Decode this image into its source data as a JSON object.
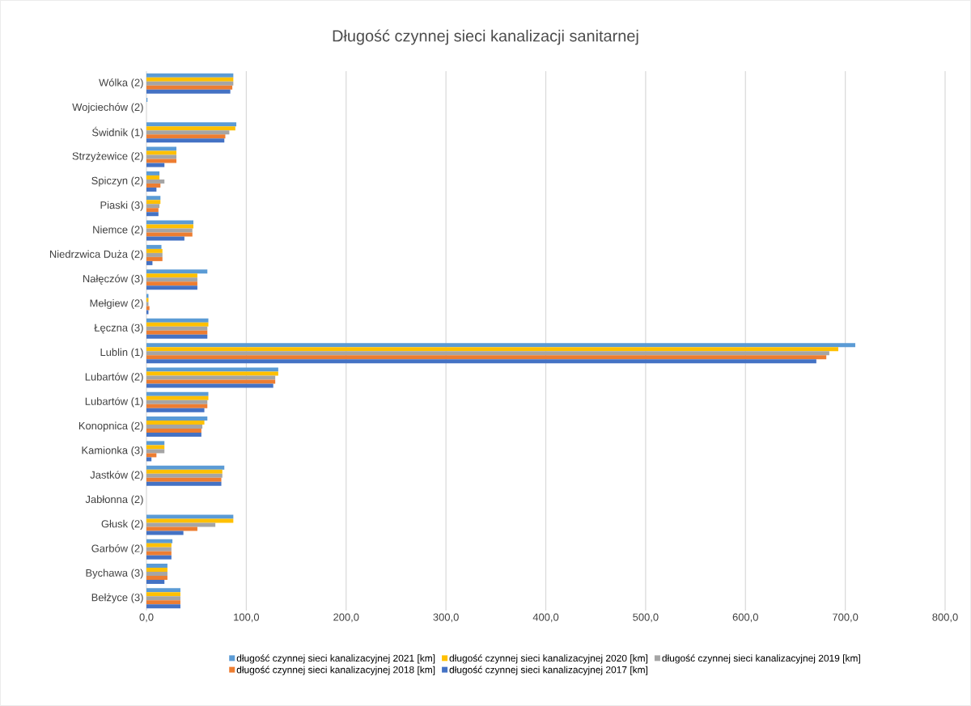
{
  "chart_data": {
    "type": "bar",
    "orientation": "horizontal",
    "title": "Długość czynnej sieci kanalizacji sanitarnej",
    "categories": [
      "Wólka (2)",
      "Wojciechów (2)",
      "Świdnik (1)",
      "Strzyżewice (2)",
      "Spiczyn (2)",
      "Piaski (3)",
      "Niemce (2)",
      "Niedrzwica Duża (2)",
      "Nałęczów (3)",
      "Mełgiew (2)",
      "Łęczna (3)",
      "Lublin (1)",
      "Lubartów (2)",
      "Lubartów (1)",
      "Konopnica (2)",
      "Kamionka (3)",
      "Jastków (2)",
      "Jabłonna (2)",
      "Głusk (2)",
      "Garbów (2)",
      "Bychawa (3)",
      "Bełżyce (3)"
    ],
    "series": [
      {
        "name": "długość czynnej sieci kanalizacyjnej 2021 [km]",
        "color": "#5b9bd5",
        "values": [
          87,
          1,
          90,
          30,
          13,
          14,
          47,
          15,
          61,
          2,
          62,
          710,
          132,
          62,
          61,
          18,
          78,
          null,
          87,
          26,
          21,
          34
        ]
      },
      {
        "name": "długość czynnej sieci kanalizacyjnej 2020 [km]",
        "color": "#ffc000",
        "values": [
          87,
          null,
          89,
          30,
          13,
          14,
          47,
          16,
          51,
          2,
          62,
          693,
          132,
          62,
          58,
          18,
          76,
          null,
          87,
          25,
          21,
          34
        ]
      },
      {
        "name": "długość czynnej sieci kanalizacyjnej 2019 [km]",
        "color": "#a5a5a5",
        "values": [
          87,
          null,
          83,
          30,
          18,
          13,
          46,
          16,
          51,
          2,
          61,
          684,
          129,
          61,
          56,
          18,
          76,
          null,
          69,
          25,
          21,
          34
        ]
      },
      {
        "name": "długość czynnej sieci kanalizacyjnej 2018 [km]",
        "color": "#ed7d31",
        "values": [
          86,
          null,
          79,
          30,
          14,
          12,
          46,
          16,
          51,
          3,
          61,
          681,
          129,
          61,
          55,
          10,
          75,
          null,
          51,
          25,
          21,
          34
        ]
      },
      {
        "name": "długość czynnej sieci kanalizacyjnej 2017 [km]",
        "color": "#4472c4",
        "values": [
          84,
          null,
          78,
          18,
          10,
          12,
          38,
          6,
          51,
          2,
          61,
          671,
          127,
          58,
          55,
          5,
          75,
          null,
          37,
          25,
          18,
          34
        ]
      }
    ],
    "xlim": [
      0,
      800
    ],
    "xticks": [
      {
        "value": 0,
        "label": "0,0"
      },
      {
        "value": 100,
        "label": "100,0"
      },
      {
        "value": 200,
        "label": "200,0"
      },
      {
        "value": 300,
        "label": "300,0"
      },
      {
        "value": 400,
        "label": "400,0"
      },
      {
        "value": 500,
        "label": "500,0"
      },
      {
        "value": 600,
        "label": "600,0"
      },
      {
        "value": 700,
        "label": "700,0"
      },
      {
        "value": 800,
        "label": "800,0"
      }
    ],
    "grid": "x",
    "legend": "bottom"
  }
}
